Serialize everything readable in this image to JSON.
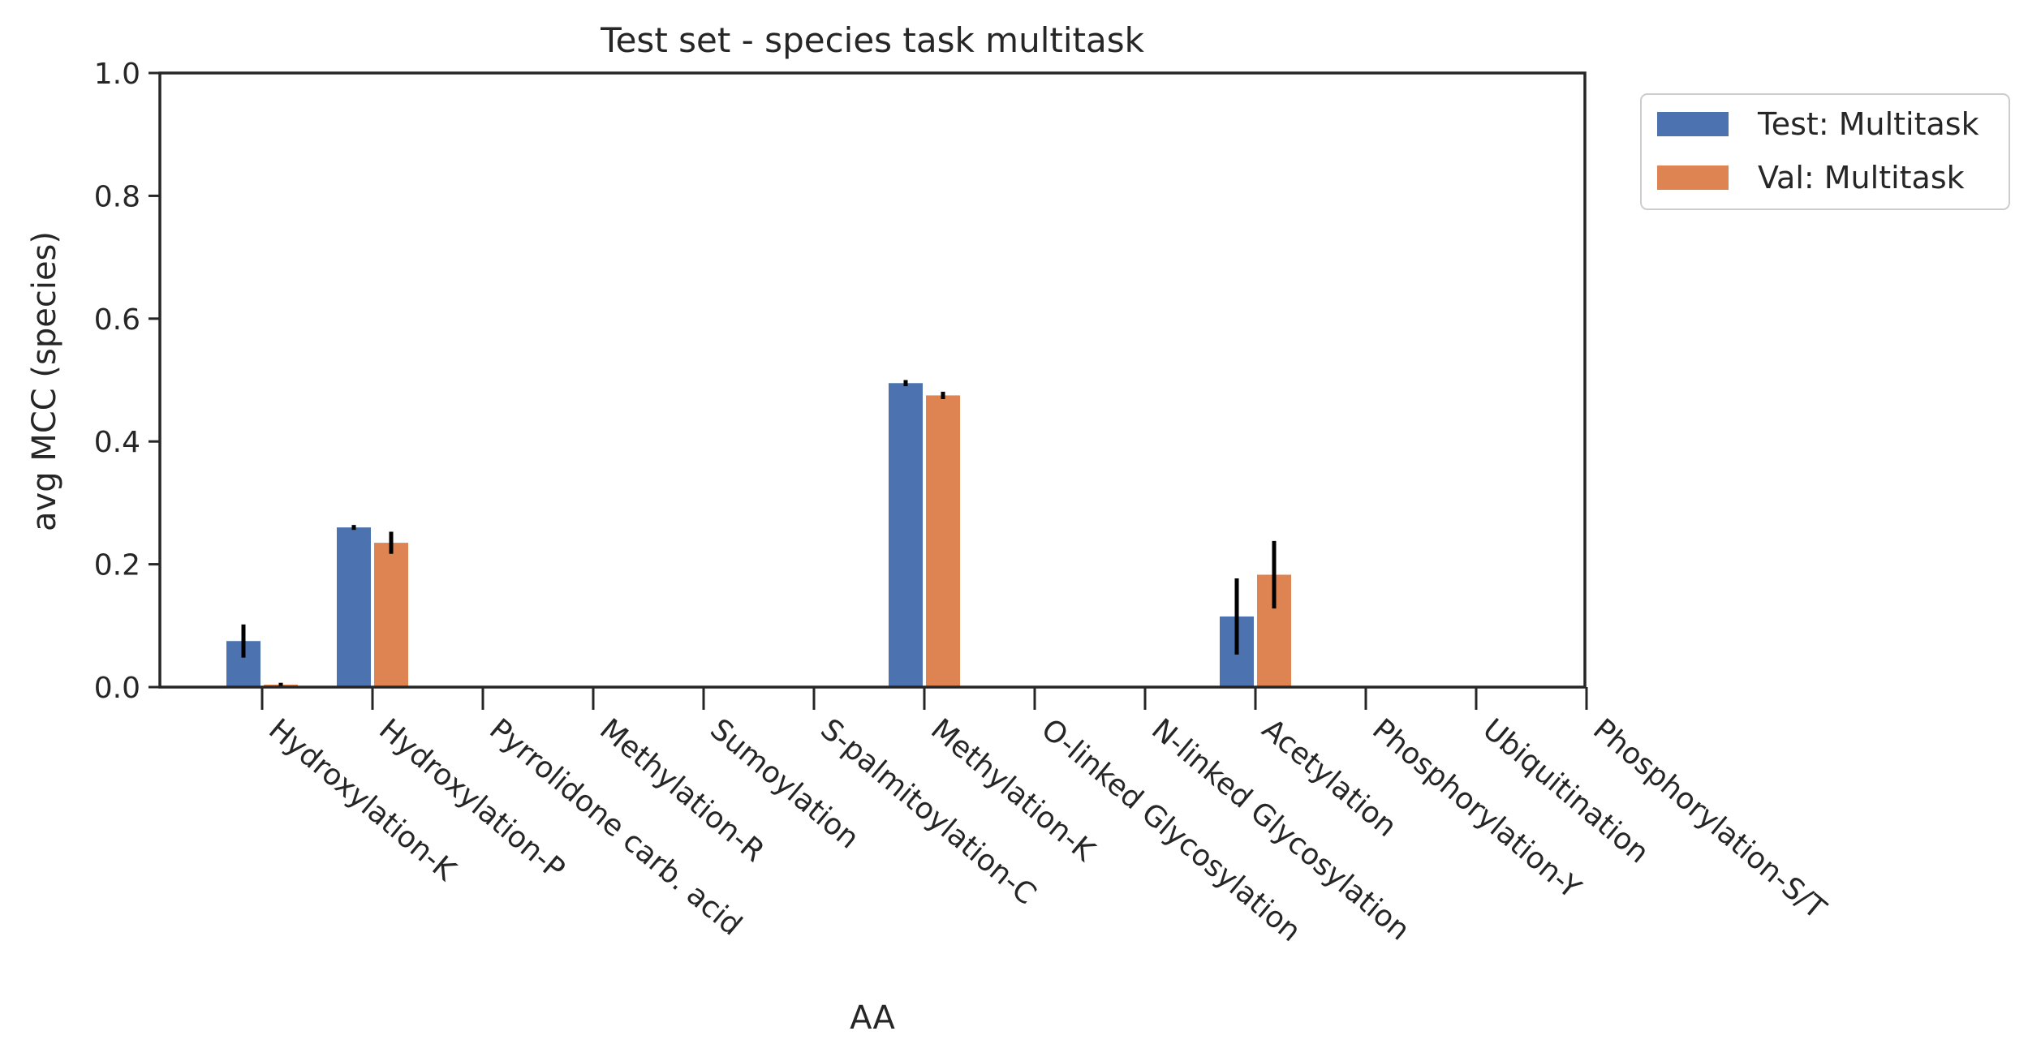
{
  "chart_data": {
    "type": "bar",
    "title": "Test set - species task multitask",
    "xlabel": "AA",
    "ylabel": "avg MCC (species)",
    "ylim": [
      0,
      1.0
    ],
    "yticks": [
      "0.0",
      "0.2",
      "0.4",
      "0.6",
      "0.8",
      "1.0"
    ],
    "ytick_values": [
      0,
      0.2,
      0.4,
      0.6,
      0.8,
      1.0
    ],
    "categories": [
      "Hydroxylation-K",
      "Hydroxylation-P",
      "Pyrrolidone carb. acid",
      "Methylation-R",
      "Sumoylation",
      "S-palmitoylation-C",
      "Methylation-K",
      "O-linked Glycosylation",
      "N-linked Glycosylation",
      "Acetylation",
      "Phosphorylation-Y",
      "Ubiquitination",
      "Phosphorylation-S/T"
    ],
    "series": [
      {
        "name": "Test: Multitask",
        "color": "#4c72b0",
        "values": [
          0.075,
          0.26,
          0,
          0,
          0,
          0,
          0.495,
          0,
          0,
          0.115,
          0,
          0,
          0
        ],
        "errors": [
          0.027,
          0.004,
          0,
          0,
          0,
          0,
          0.005,
          0,
          0,
          0.062,
          0,
          0,
          0
        ]
      },
      {
        "name": "Val: Multitask",
        "color": "#dd8452",
        "values": [
          0.004,
          0.235,
          0,
          0,
          0,
          0,
          0.475,
          0,
          0,
          0.183,
          0,
          0,
          0
        ],
        "errors": [
          0.003,
          0.018,
          0,
          0,
          0,
          0,
          0.006,
          0,
          0,
          0.055,
          0,
          0,
          0
        ]
      }
    ],
    "legend_position": "upper right, outside plot",
    "grid": false
  }
}
